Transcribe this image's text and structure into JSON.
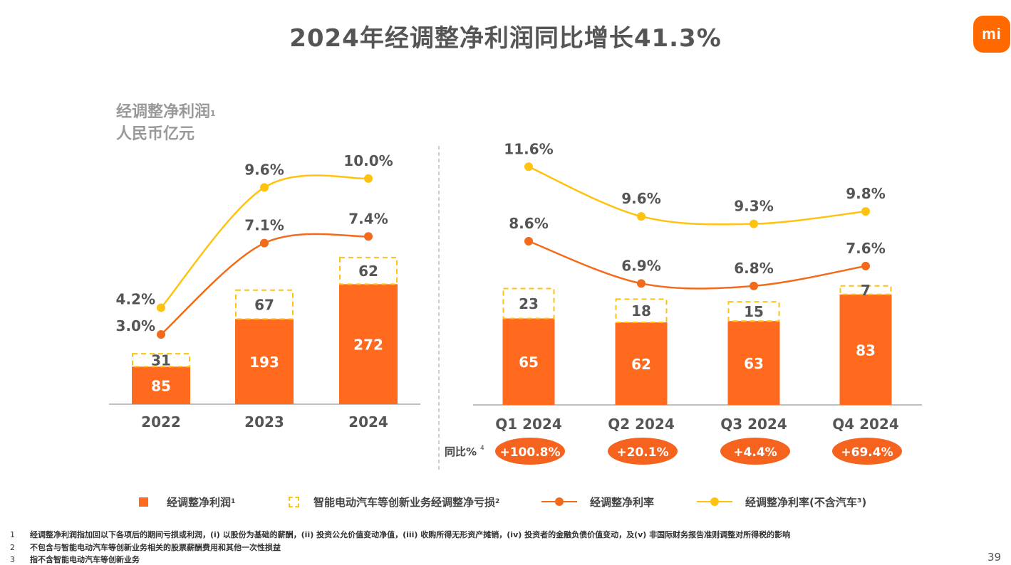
{
  "title": "2024年经调整净利润同比增长41.3%",
  "logo_text": "mi",
  "unit": {
    "line1": "经调整净利润",
    "line1_sup": "1",
    "line2": "人民币亿元"
  },
  "yoy_label": "同比%",
  "yoy_label_sup": "4",
  "legend": [
    {
      "label": "经调整净利润",
      "sup": "1"
    },
    {
      "label": "智能电动汽车等创新业务经调整净亏损",
      "sup": "2"
    },
    {
      "label": "经调整净利率",
      "sup": ""
    },
    {
      "label": "经调整净利率(不含汽车³)",
      "sup": ""
    }
  ],
  "footnotes": [
    {
      "num": "1",
      "text": "经调整净利润指加回以下各项后的期间亏损或利润，(i) 以股份为基础的薪酬，(ii) 投资公允价值变动净值，(iii) 收购所得无形资产摊销，(iv) 投资者的金融负债价值变动，及(v) 非国际财务报告准则调整对所得税的影响"
    },
    {
      "num": "2",
      "text": "不包含与智能电动汽车等创新业务相关的股票薪酬费用和其他一次性损益"
    },
    {
      "num": "3",
      "text": "指不含智能电动汽车等创新业务"
    }
  ],
  "page_number": "39",
  "colors": {
    "orange": "#FF6A1F",
    "yellow": "#FFC20E",
    "line_orange": "#F26B1D",
    "dashed": "#FFC20E",
    "badge": "#F5631F"
  },
  "chart_data": [
    {
      "type": "bar",
      "categories": [
        "2022",
        "2023",
        "2024"
      ],
      "series": [
        {
          "name": "经调整净利润",
          "values": [
            85,
            193,
            272
          ],
          "labels": [
            "85",
            "193",
            "272"
          ]
        },
        {
          "name": "智能电动汽车等创新业务经调整净亏损",
          "values": [
            31,
            67,
            62
          ],
          "labels": [
            "31",
            "67",
            "62"
          ]
        }
      ],
      "lines": [
        {
          "name": "经调整净利率",
          "values": [
            3.0,
            7.1,
            7.4
          ],
          "labels": [
            "3.0%",
            "7.1%",
            "7.4%"
          ]
        },
        {
          "name": "经调整净利率(不含汽车³)",
          "values": [
            4.2,
            9.6,
            10.0
          ],
          "labels": [
            "4.2%",
            "9.6%",
            "10.0%"
          ]
        }
      ]
    },
    {
      "type": "bar",
      "categories": [
        "Q1 2024",
        "Q2 2024",
        "Q3 2024",
        "Q4 2024"
      ],
      "series": [
        {
          "name": "经调整净利润",
          "values": [
            65,
            62,
            63,
            83
          ],
          "labels": [
            "65",
            "62",
            "63",
            "83"
          ]
        },
        {
          "name": "智能电动汽车等创新业务经调整净亏损",
          "values": [
            23,
            18,
            15,
            7
          ],
          "labels": [
            "23",
            "18",
            "15",
            "7"
          ]
        }
      ],
      "lines": [
        {
          "name": "经调整净利率",
          "values": [
            8.6,
            6.9,
            6.8,
            7.6
          ],
          "labels": [
            "8.6%",
            "6.9%",
            "6.8%",
            "7.6%"
          ]
        },
        {
          "name": "经调整净利率(不含汽车³)",
          "values": [
            11.6,
            9.6,
            9.3,
            9.8
          ],
          "labels": [
            "11.6%",
            "9.6%",
            "9.3%",
            "9.8%"
          ]
        }
      ],
      "yoy": [
        "+100.8%",
        "+20.1%",
        "+4.4%",
        "+69.4%"
      ]
    }
  ]
}
